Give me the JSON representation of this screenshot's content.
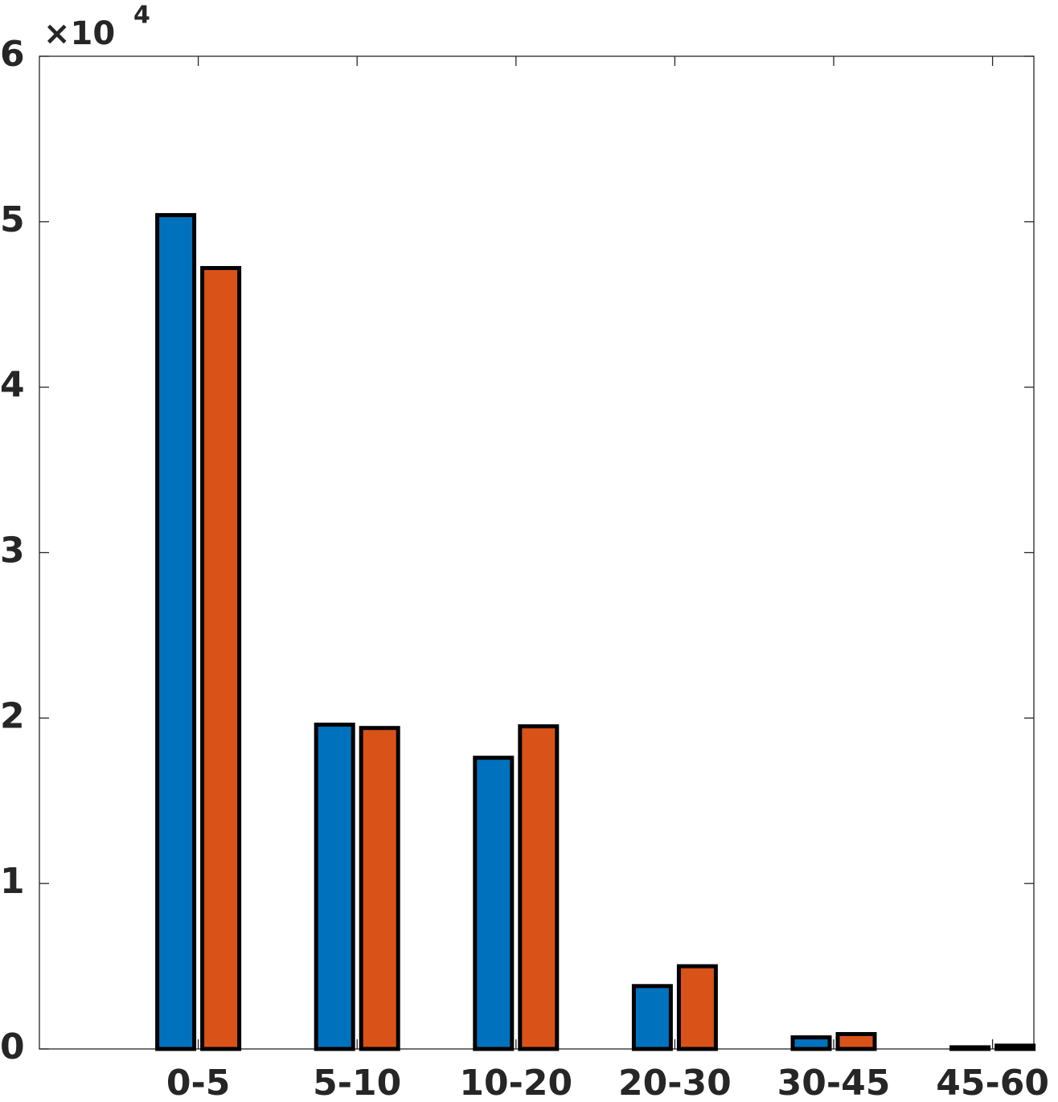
{
  "chart_data": {
    "type": "bar",
    "y_scale_label": "×10",
    "y_scale_exponent": "4",
    "categories": [
      "0-5",
      "5-10",
      "10-20",
      "20-30",
      "30-45",
      "45-60"
    ],
    "series": [
      {
        "color": "#0072bd",
        "values": [
          5.04,
          1.96,
          1.76,
          0.38,
          0.07,
          0.01
        ]
      },
      {
        "color": "#d95319",
        "values": [
          4.72,
          1.94,
          1.95,
          0.5,
          0.09,
          0.02
        ]
      }
    ],
    "ylim": [
      0,
      6
    ],
    "yticks": [
      0,
      1,
      2,
      3,
      4,
      5,
      6
    ]
  }
}
